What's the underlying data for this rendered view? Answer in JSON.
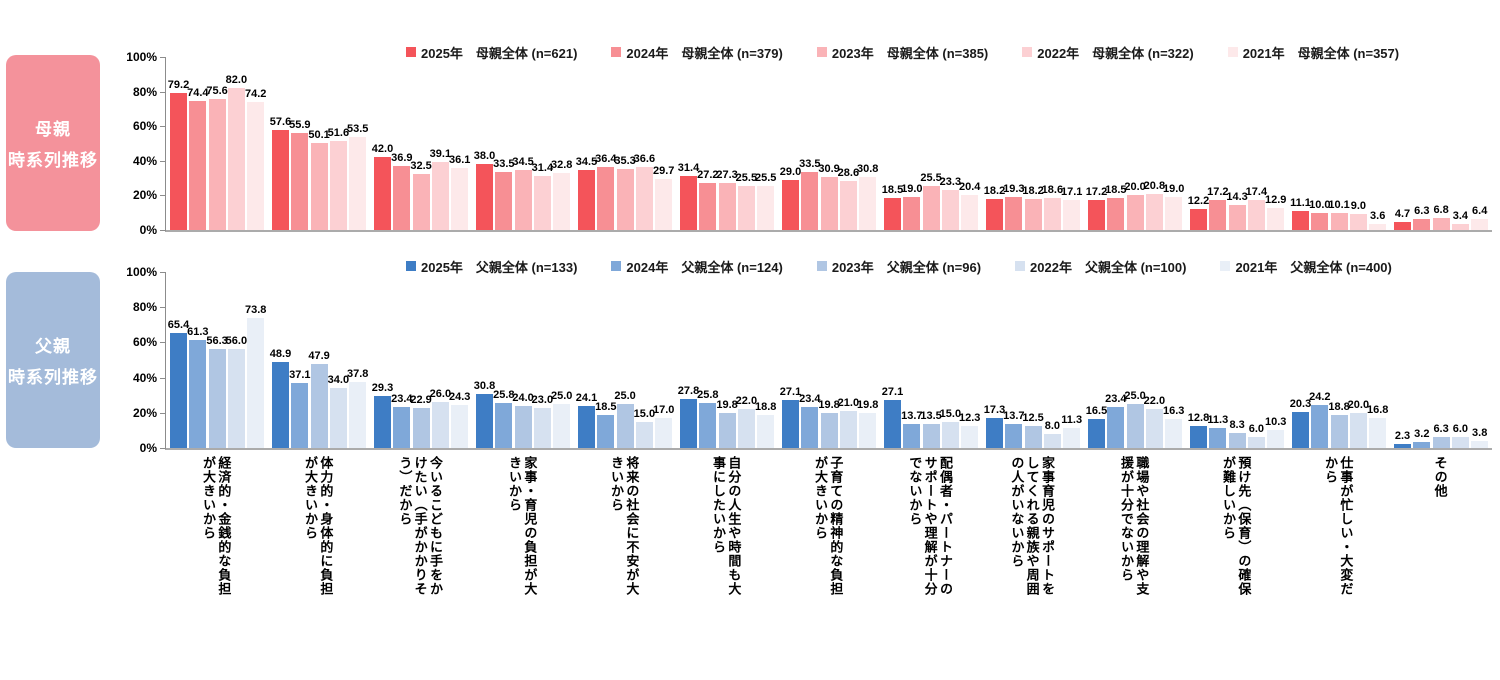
{
  "categories": [
    "経済的・金銭的な負担が大きいから",
    "体力的・身体的に負担が大きいから",
    "今いるこどもに手をかけたい（手がかかりそう）だから",
    "家事・育児の負担が大きいから",
    "将来の社会に不安が大きいから",
    "自分の人生や時間も大事にしたいから",
    "子育ての精神的な負担が大きいから",
    "配偶者・パートナーのサポートや理解が十分でないから",
    "家事育児のサポートをしてくれる親族や周囲の人がいないから",
    "職場や社会の理解や支援が十分でないから",
    "預け先（保育）の確保が難しいから",
    "仕事が忙しい・大変だから",
    "その他"
  ],
  "chart_data": [
    {
      "type": "bar",
      "panel_label": [
        "母親",
        "時系列推移"
      ],
      "panel_color": "#F4929B",
      "legend_position": "top",
      "grid": false,
      "ylim": [
        0,
        100
      ],
      "yticks": [
        "100%",
        "80%",
        "60%",
        "40%",
        "20%",
        "0%"
      ],
      "categories": [
        "経済的・金銭的な負担が大きいから",
        "体力的・身体的に負担が大きいから",
        "今いるこどもに手をかけたい（手がかかりそう）だから",
        "家事・育児の負担が大きいから",
        "将来の社会に不安が大きいから",
        "自分の人生や時間も大事にしたいから",
        "子育ての精神的な負担が大きいから",
        "配偶者・パートナーのサポートや理解が十分でないから",
        "家事育児のサポートをしてくれる親族や周囲の人がいないから",
        "職場や社会の理解や支援が十分でないから",
        "預け先（保育）の確保が難しいから",
        "仕事が忙しい・大変だから",
        "その他"
      ],
      "series": [
        {
          "name": "2025年　母親全体 (n=621)",
          "color": "#F4545A",
          "values": [
            79.2,
            57.6,
            42.0,
            38.0,
            34.5,
            31.4,
            29.0,
            18.5,
            18.2,
            17.2,
            12.2,
            11.1,
            4.7
          ]
        },
        {
          "name": "2024年　母親全体 (n=379)",
          "color": "#F78F94",
          "values": [
            74.4,
            55.9,
            36.9,
            33.5,
            36.4,
            27.2,
            33.5,
            19.0,
            19.3,
            18.5,
            17.2,
            10.0,
            6.3
          ]
        },
        {
          "name": "2023年　母親全体 (n=385)",
          "color": "#FAB3B7",
          "values": [
            75.6,
            50.1,
            32.5,
            34.5,
            35.3,
            27.3,
            30.9,
            25.5,
            18.2,
            20.0,
            14.3,
            10.1,
            6.8
          ]
        },
        {
          "name": "2022年　母親全体 (n=322)",
          "color": "#FCD0D3",
          "values": [
            82.0,
            51.6,
            39.1,
            31.4,
            36.6,
            25.5,
            28.6,
            23.3,
            18.6,
            20.8,
            17.4,
            9.0,
            3.4
          ]
        },
        {
          "name": "2021年　母親全体 (n=357)",
          "color": "#FDE9EA",
          "values": [
            74.2,
            53.5,
            36.1,
            32.8,
            29.7,
            25.5,
            30.8,
            20.4,
            17.1,
            19.0,
            12.9,
            3.6,
            6.4
          ]
        }
      ]
    },
    {
      "type": "bar",
      "panel_label": [
        "父親",
        "時系列推移"
      ],
      "panel_color": "#A4BBDA",
      "legend_position": "top",
      "grid": false,
      "ylim": [
        0,
        100
      ],
      "yticks": [
        "100%",
        "80%",
        "60%",
        "40%",
        "20%",
        "0%"
      ],
      "categories": [
        "経済的・金銭的な負担が大きいから",
        "体力的・身体的に負担が大きいから",
        "今いるこどもに手をかけたい（手がかかりそう）だから",
        "家事・育児の負担が大きいから",
        "将来の社会に不安が大きいから",
        "自分の人生や時間も大事にしたいから",
        "子育ての精神的な負担が大きいから",
        "配偶者・パートナーのサポートや理解が十分でないから",
        "家事育児のサポートをしてくれる親族や周囲の人がいないから",
        "職場や社会の理解や支援が十分でないから",
        "預け先（保育）の確保が難しいから",
        "仕事が忙しい・大変だから",
        "その他"
      ],
      "series": [
        {
          "name": "2025年　父親全体 (n=133)",
          "color": "#3E7DC5",
          "values": [
            65.4,
            48.9,
            29.3,
            30.8,
            24.1,
            27.8,
            27.1,
            27.1,
            17.3,
            16.5,
            12.8,
            20.3,
            2.3
          ]
        },
        {
          "name": "2024年　父親全体 (n=124)",
          "color": "#7FA8D9",
          "values": [
            61.3,
            37.1,
            23.4,
            25.8,
            18.5,
            25.8,
            23.4,
            13.7,
            13.7,
            23.4,
            11.3,
            24.2,
            3.2
          ]
        },
        {
          "name": "2023年　父親全体 (n=96)",
          "color": "#B0C6E3",
          "values": [
            56.3,
            47.9,
            22.9,
            24.0,
            25.0,
            19.8,
            19.8,
            13.5,
            12.5,
            25.0,
            8.3,
            18.8,
            6.3
          ]
        },
        {
          "name": "2022年　父親全体 (n=100)",
          "color": "#D6E1F0",
          "values": [
            56.0,
            34.0,
            26.0,
            23.0,
            15.0,
            22.0,
            21.0,
            15.0,
            8.0,
            22.0,
            6.0,
            20.0,
            6.0
          ]
        },
        {
          "name": "2021年　父親全体 (n=400)",
          "color": "#E9EFF7",
          "values": [
            73.8,
            37.8,
            24.3,
            25.0,
            17.0,
            18.8,
            19.8,
            12.3,
            11.3,
            16.3,
            10.3,
            16.8,
            3.8
          ]
        }
      ]
    }
  ]
}
